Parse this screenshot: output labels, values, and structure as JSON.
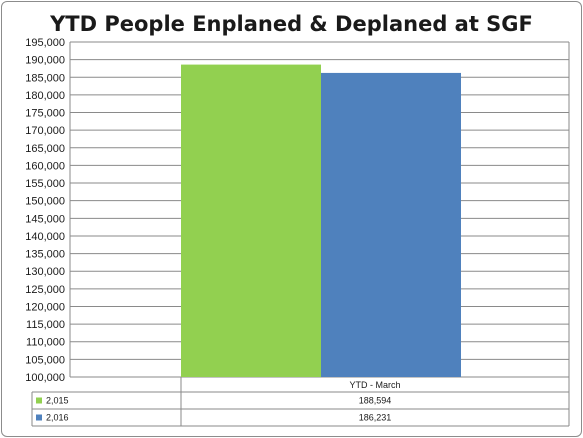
{
  "chart_data": {
    "type": "bar",
    "title": "YTD People Enplaned & Deplaned at SGF",
    "categories": [
      "YTD - March"
    ],
    "series": [
      {
        "name": "2,015",
        "values": [
          188594
        ],
        "display": "188,594",
        "color": "#92d050"
      },
      {
        "name": "2,016",
        "values": [
          186231
        ],
        "display": "186,231",
        "color": "#4f81bd"
      }
    ],
    "ylim": [
      100000,
      195000
    ],
    "yticks": [
      100000,
      105000,
      110000,
      115000,
      120000,
      125000,
      130000,
      135000,
      140000,
      145000,
      150000,
      155000,
      160000,
      165000,
      170000,
      175000,
      180000,
      185000,
      190000,
      195000
    ],
    "ytick_labels": [
      "100,000",
      "105,000",
      "110,000",
      "115,000",
      "120,000",
      "125,000",
      "130,000",
      "135,000",
      "140,000",
      "145,000",
      "150,000",
      "155,000",
      "160,000",
      "165,000",
      "170,000",
      "175,000",
      "180,000",
      "185,000",
      "190,000",
      "195,000"
    ],
    "grid": true,
    "legend": "data-table-below"
  }
}
